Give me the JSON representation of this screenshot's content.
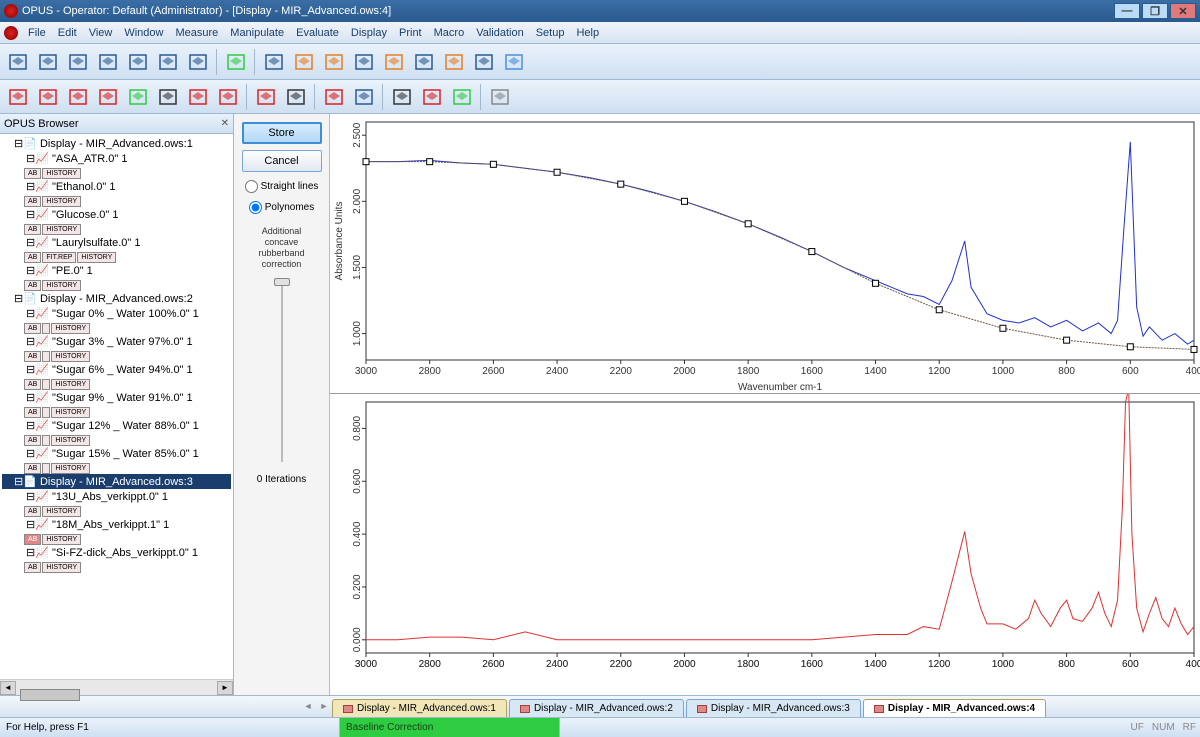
{
  "title": "OPUS - Operator: Default  (Administrator) - [Display - MIR_Advanced.ows:4]",
  "menus": [
    "File",
    "Edit",
    "View",
    "Window",
    "Measure",
    "Manipulate",
    "Evaluate",
    "Display",
    "Print",
    "Macro",
    "Validation",
    "Setup",
    "Help"
  ],
  "toolbar1_icons": [
    {
      "n": "open-icon",
      "c": "#2b5a8f"
    },
    {
      "n": "open2-icon",
      "c": "#2b5a8f"
    },
    {
      "n": "save-icon",
      "c": "#2b5a8f"
    },
    {
      "n": "copy-icon",
      "c": "#2b5a8f"
    },
    {
      "n": "window-icon",
      "c": "#2b5a8f"
    },
    {
      "n": "script-icon",
      "c": "#2b5a8f"
    },
    {
      "n": "unload-icon",
      "c": "#2b5a8f"
    },
    {
      "sep": true
    },
    {
      "n": "measure-icon",
      "c": "#2ecc40"
    },
    {
      "sep": true
    },
    {
      "n": "cut-icon",
      "c": "#2b5a8f"
    },
    {
      "n": "grid-icon",
      "c": "#e67e22"
    },
    {
      "n": "normalize-icon",
      "c": "#e67e22"
    },
    {
      "n": "peak1-icon",
      "c": "#2b5a8f"
    },
    {
      "n": "peak2-icon",
      "c": "#e67e22"
    },
    {
      "n": "peak3-icon",
      "c": "#2b5a8f"
    },
    {
      "n": "peak4-icon",
      "c": "#e67e22"
    },
    {
      "n": "list-icon",
      "c": "#2b5a8f"
    },
    {
      "n": "table-icon",
      "c": "#4a90d9"
    }
  ],
  "toolbar2_icons": [
    {
      "n": "peak-pick-icon",
      "c": "#d22"
    },
    {
      "n": "p2-icon",
      "c": "#d22"
    },
    {
      "n": "p3-icon",
      "c": "#d22"
    },
    {
      "n": "p4-icon",
      "c": "#d22"
    },
    {
      "n": "p5-icon",
      "c": "#2ecc40"
    },
    {
      "n": "zoom-icon",
      "c": "#333"
    },
    {
      "n": "p6-icon",
      "c": "#d22"
    },
    {
      "n": "p7-icon",
      "c": "#d22"
    },
    {
      "sep": true
    },
    {
      "n": "d1-icon",
      "c": "#d22"
    },
    {
      "n": "d2-icon",
      "c": "#333"
    },
    {
      "sep": true
    },
    {
      "n": "d3-icon",
      "c": "#d22"
    },
    {
      "n": "d4-icon",
      "c": "#2b5a8f"
    },
    {
      "sep": true
    },
    {
      "n": "d5-icon",
      "c": "#333"
    },
    {
      "n": "d6-icon",
      "c": "#d22"
    },
    {
      "n": "d7-icon",
      "c": "#2ecc40"
    },
    {
      "sep": true
    },
    {
      "n": "print-icon",
      "c": "#888"
    }
  ],
  "browser": {
    "title": "OPUS Browser",
    "groups": [
      {
        "label": "Display - MIR_Advanced.ows:1",
        "items": [
          {
            "label": "\"ASA_ATR.0\" 1",
            "b": [
              "AB",
              "HISTORY"
            ]
          },
          {
            "label": "\"Ethanol.0\" 1",
            "b": [
              "AB",
              "HISTORY"
            ]
          },
          {
            "label": "\"Glucose.0\" 1",
            "b": [
              "AB",
              "HISTORY"
            ]
          },
          {
            "label": "\"Laurylsulfate.0\" 1",
            "b": [
              "AB",
              "FIT.REP",
              "HISTORY"
            ]
          },
          {
            "label": "\"PE.0\" 1",
            "b": [
              "AB",
              "HISTORY"
            ]
          }
        ]
      },
      {
        "label": "Display - MIR_Advanced.ows:2",
        "items": [
          {
            "label": "\"Sugar 0% _ Water 100%.0\" 1",
            "b": [
              "AB",
              "",
              "HISTORY"
            ]
          },
          {
            "label": "\"Sugar 3% _ Water 97%.0\" 1",
            "b": [
              "AB",
              "",
              "HISTORY"
            ]
          },
          {
            "label": "\"Sugar 6% _ Water 94%.0\" 1",
            "b": [
              "AB",
              "",
              "HISTORY"
            ]
          },
          {
            "label": "\"Sugar 9% _ Water 91%.0\" 1",
            "b": [
              "AB",
              "",
              "HISTORY"
            ]
          },
          {
            "label": "\"Sugar 12% _ Water 88%.0\" 1",
            "b": [
              "AB",
              "",
              "HISTORY"
            ]
          },
          {
            "label": "\"Sugar 15% _ Water 85%.0\" 1",
            "b": [
              "AB",
              "",
              "HISTORY"
            ]
          }
        ]
      },
      {
        "label": "Display - MIR_Advanced.ows:3",
        "sel": true,
        "items": [
          {
            "label": "\"13U_Abs_verkippt.0\" 1",
            "b": [
              "AB",
              "HISTORY"
            ]
          },
          {
            "label": "\"18M_Abs_verkippt.1\" 1",
            "b": [
              "AB",
              "HISTORY"
            ],
            "r": true
          },
          {
            "label": "\"Si-FZ-dick_Abs_verkippt.0\" 1",
            "b": [
              "AB",
              "HISTORY"
            ]
          }
        ]
      }
    ]
  },
  "panel": {
    "store": "Store",
    "cancel": "Cancel",
    "opt_straight": "Straight lines",
    "opt_poly": "Polynomes",
    "caption": "Additional\nconcave\nrubberband\ncorrection",
    "iterations": "0 Iterations"
  },
  "chart1": {
    "ylabel": "Absorbance Units",
    "xlabel": "Wavenumber cm-1",
    "xlim": [
      3000,
      400
    ],
    "xticks": [
      3000,
      2800,
      2600,
      2400,
      2200,
      2000,
      1800,
      1600,
      1400,
      1200,
      1000,
      800,
      600,
      400
    ],
    "ylim": [
      0.8,
      2.6
    ],
    "yticks": [
      1.0,
      1.5,
      2.0,
      2.5
    ],
    "spectrum_color": "#2030d0",
    "baseline_color": "#6b5640",
    "handle_color": "#000",
    "spectrum": [
      [
        3000,
        2.3
      ],
      [
        2900,
        2.3
      ],
      [
        2800,
        2.31
      ],
      [
        2700,
        2.29
      ],
      [
        2600,
        2.28
      ],
      [
        2500,
        2.25
      ],
      [
        2400,
        2.22
      ],
      [
        2300,
        2.18
      ],
      [
        2200,
        2.13
      ],
      [
        2100,
        2.07
      ],
      [
        2000,
        2.0
      ],
      [
        1900,
        1.92
      ],
      [
        1800,
        1.83
      ],
      [
        1700,
        1.73
      ],
      [
        1600,
        1.62
      ],
      [
        1500,
        1.5
      ],
      [
        1400,
        1.4
      ],
      [
        1300,
        1.3
      ],
      [
        1250,
        1.28
      ],
      [
        1200,
        1.22
      ],
      [
        1160,
        1.4
      ],
      [
        1120,
        1.7
      ],
      [
        1100,
        1.35
      ],
      [
        1050,
        1.15
      ],
      [
        1000,
        1.1
      ],
      [
        950,
        1.08
      ],
      [
        900,
        1.12
      ],
      [
        850,
        1.05
      ],
      [
        800,
        1.1
      ],
      [
        750,
        1.02
      ],
      [
        700,
        1.08
      ],
      [
        660,
        1.0
      ],
      [
        640,
        1.1
      ],
      [
        620,
        1.8
      ],
      [
        600,
        2.45
      ],
      [
        580,
        1.2
      ],
      [
        560,
        0.98
      ],
      [
        540,
        1.05
      ],
      [
        500,
        0.95
      ],
      [
        460,
        1.0
      ],
      [
        420,
        0.92
      ],
      [
        400,
        0.95
      ]
    ],
    "baseline_pts": [
      [
        3000,
        2.3
      ],
      [
        2800,
        2.3
      ],
      [
        2600,
        2.28
      ],
      [
        2400,
        2.22
      ],
      [
        2200,
        2.13
      ],
      [
        2000,
        2.0
      ],
      [
        1800,
        1.83
      ],
      [
        1600,
        1.62
      ],
      [
        1400,
        1.38
      ],
      [
        1200,
        1.18
      ],
      [
        1000,
        1.04
      ],
      [
        800,
        0.95
      ],
      [
        600,
        0.9
      ],
      [
        400,
        0.88
      ]
    ]
  },
  "chart2": {
    "xlim": [
      3000,
      400
    ],
    "xticks": [
      3000,
      2800,
      2600,
      2400,
      2200,
      2000,
      1800,
      1600,
      1400,
      1200,
      1000,
      800,
      600,
      400
    ],
    "ylim": [
      -0.05,
      0.9
    ],
    "yticks": [
      0.0,
      0.2,
      0.4,
      0.6,
      0.8
    ],
    "spectrum_color": "#e03030",
    "spectrum": [
      [
        3000,
        0.0
      ],
      [
        2900,
        0.0
      ],
      [
        2800,
        0.01
      ],
      [
        2700,
        0.01
      ],
      [
        2600,
        0.0
      ],
      [
        2500,
        0.03
      ],
      [
        2400,
        0.0
      ],
      [
        2300,
        0.0
      ],
      [
        2200,
        0.0
      ],
      [
        2100,
        0.0
      ],
      [
        2000,
        0.0
      ],
      [
        1900,
        0.0
      ],
      [
        1800,
        0.0
      ],
      [
        1700,
        0.0
      ],
      [
        1600,
        0.0
      ],
      [
        1500,
        0.01
      ],
      [
        1400,
        0.02
      ],
      [
        1300,
        0.02
      ],
      [
        1250,
        0.05
      ],
      [
        1200,
        0.04
      ],
      [
        1160,
        0.22
      ],
      [
        1120,
        0.41
      ],
      [
        1100,
        0.25
      ],
      [
        1070,
        0.12
      ],
      [
        1050,
        0.06
      ],
      [
        1000,
        0.06
      ],
      [
        960,
        0.04
      ],
      [
        920,
        0.08
      ],
      [
        900,
        0.15
      ],
      [
        880,
        0.1
      ],
      [
        850,
        0.05
      ],
      [
        820,
        0.12
      ],
      [
        800,
        0.15
      ],
      [
        780,
        0.08
      ],
      [
        750,
        0.07
      ],
      [
        720,
        0.12
      ],
      [
        700,
        0.18
      ],
      [
        680,
        0.1
      ],
      [
        660,
        0.05
      ],
      [
        640,
        0.15
      ],
      [
        625,
        0.5
      ],
      [
        615,
        0.9
      ],
      [
        605,
        0.95
      ],
      [
        595,
        0.4
      ],
      [
        580,
        0.12
      ],
      [
        560,
        0.03
      ],
      [
        540,
        0.1
      ],
      [
        520,
        0.16
      ],
      [
        500,
        0.08
      ],
      [
        480,
        0.05
      ],
      [
        460,
        0.12
      ],
      [
        440,
        0.06
      ],
      [
        420,
        0.02
      ],
      [
        400,
        0.05
      ]
    ]
  },
  "tabs": [
    {
      "label": "Display - MIR_Advanced.ows:1",
      "cls": ""
    },
    {
      "label": "Display - MIR_Advanced.ows:2",
      "cls": "v2"
    },
    {
      "label": "Display - MIR_Advanced.ows:3",
      "cls": "v2"
    },
    {
      "label": "Display - MIR_Advanced.ows:4",
      "cls": "act"
    }
  ],
  "status": {
    "help": "For Help, press F1",
    "mode": "Baseline Correction",
    "flags": [
      "UF",
      "NUM",
      "RF"
    ]
  }
}
